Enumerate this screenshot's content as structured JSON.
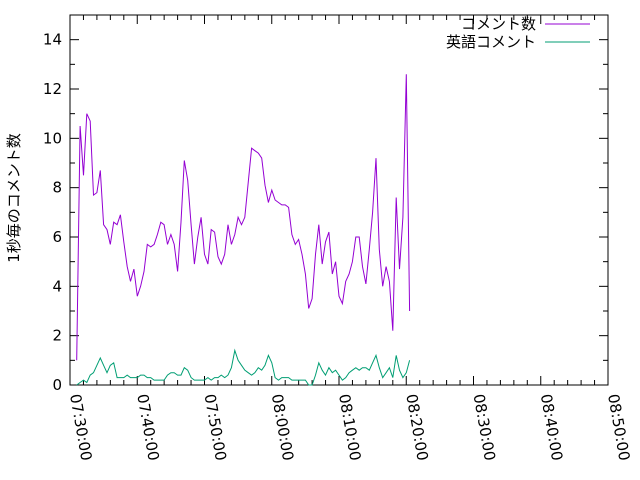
{
  "chart_data": {
    "type": "line",
    "title": "",
    "xlabel": "",
    "ylabel": "1秒毎のコメント数",
    "xlim": [
      "07:30:00",
      "08:50:00"
    ],
    "ylim": [
      0,
      15
    ],
    "x_ticks": [
      "07:30:00",
      "07:40:00",
      "07:50:00",
      "08:00:00",
      "08:10:00",
      "08:20:00",
      "08:30:00",
      "08:40:00",
      "08:50:00"
    ],
    "y_ticks": [
      "0",
      "2",
      "4",
      "6",
      "8",
      "10",
      "12",
      "14"
    ],
    "legend_position": "top-right",
    "grid": false,
    "series": [
      {
        "name": "コメント数",
        "color": "#9400d3",
        "points": [
          [
            "07:31:00",
            1.0
          ],
          [
            "07:31:30",
            10.5
          ],
          [
            "07:32:00",
            8.5
          ],
          [
            "07:32:30",
            11.0
          ],
          [
            "07:33:00",
            10.7
          ],
          [
            "07:33:30",
            7.7
          ],
          [
            "07:34:00",
            7.8
          ],
          [
            "07:34:30",
            8.7
          ],
          [
            "07:35:00",
            6.5
          ],
          [
            "07:35:30",
            6.3
          ],
          [
            "07:36:00",
            5.7
          ],
          [
            "07:36:30",
            6.6
          ],
          [
            "07:37:00",
            6.5
          ],
          [
            "07:37:30",
            6.9
          ],
          [
            "07:38:00",
            5.8
          ],
          [
            "07:38:30",
            4.8
          ],
          [
            "07:39:00",
            4.2
          ],
          [
            "07:39:30",
            4.7
          ],
          [
            "07:40:00",
            3.6
          ],
          [
            "07:40:30",
            4.0
          ],
          [
            "07:41:00",
            4.6
          ],
          [
            "07:41:30",
            5.7
          ],
          [
            "07:42:00",
            5.6
          ],
          [
            "07:42:30",
            5.7
          ],
          [
            "07:43:00",
            6.1
          ],
          [
            "07:43:30",
            6.6
          ],
          [
            "07:44:00",
            6.5
          ],
          [
            "07:44:30",
            5.7
          ],
          [
            "07:45:00",
            6.1
          ],
          [
            "07:45:30",
            5.7
          ],
          [
            "07:46:00",
            4.6
          ],
          [
            "07:46:30",
            6.6
          ],
          [
            "07:47:00",
            9.1
          ],
          [
            "07:47:30",
            8.3
          ],
          [
            "07:48:00",
            6.5
          ],
          [
            "07:48:30",
            4.9
          ],
          [
            "07:49:00",
            6.0
          ],
          [
            "07:49:30",
            6.8
          ],
          [
            "07:50:00",
            5.3
          ],
          [
            "07:50:30",
            4.9
          ],
          [
            "07:51:00",
            6.3
          ],
          [
            "07:51:30",
            6.2
          ],
          [
            "07:52:00",
            5.2
          ],
          [
            "07:52:30",
            4.9
          ],
          [
            "07:53:00",
            5.3
          ],
          [
            "07:53:30",
            6.5
          ],
          [
            "07:54:00",
            5.7
          ],
          [
            "07:54:30",
            6.1
          ],
          [
            "07:55:00",
            6.8
          ],
          [
            "07:55:30",
            6.5
          ],
          [
            "07:56:00",
            6.8
          ],
          [
            "07:56:30",
            8.2
          ],
          [
            "07:57:00",
            9.6
          ],
          [
            "07:57:30",
            9.5
          ],
          [
            "07:58:00",
            9.4
          ],
          [
            "07:58:30",
            9.2
          ],
          [
            "07:59:00",
            8.1
          ],
          [
            "07:59:30",
            7.4
          ],
          [
            "08:00:00",
            7.9
          ],
          [
            "08:00:30",
            7.5
          ],
          [
            "08:01:00",
            7.4
          ],
          [
            "08:01:30",
            7.3
          ],
          [
            "08:02:00",
            7.3
          ],
          [
            "08:02:30",
            7.2
          ],
          [
            "08:03:00",
            6.1
          ],
          [
            "08:03:30",
            5.7
          ],
          [
            "08:04:00",
            5.9
          ],
          [
            "08:04:30",
            5.3
          ],
          [
            "08:05:00",
            4.5
          ],
          [
            "08:05:30",
            3.1
          ],
          [
            "08:06:00",
            3.5
          ],
          [
            "08:06:30",
            5.3
          ],
          [
            "08:07:00",
            6.5
          ],
          [
            "08:07:30",
            4.9
          ],
          [
            "08:08:00",
            5.8
          ],
          [
            "08:08:30",
            6.2
          ],
          [
            "08:09:00",
            4.5
          ],
          [
            "08:09:30",
            5.0
          ],
          [
            "08:10:00",
            3.6
          ],
          [
            "08:10:30",
            3.3
          ],
          [
            "08:11:00",
            4.2
          ],
          [
            "08:11:30",
            4.5
          ],
          [
            "08:12:00",
            5.0
          ],
          [
            "08:12:30",
            6.0
          ],
          [
            "08:13:00",
            6.0
          ],
          [
            "08:13:30",
            4.8
          ],
          [
            "08:14:00",
            4.1
          ],
          [
            "08:14:30",
            5.5
          ],
          [
            "08:15:00",
            7.0
          ],
          [
            "08:15:30",
            9.2
          ],
          [
            "08:16:00",
            5.5
          ],
          [
            "08:16:30",
            4.0
          ],
          [
            "08:17:00",
            4.8
          ],
          [
            "08:17:30",
            4.2
          ],
          [
            "08:18:00",
            2.2
          ],
          [
            "08:18:30",
            7.6
          ],
          [
            "08:19:00",
            4.7
          ],
          [
            "08:19:30",
            6.8
          ],
          [
            "08:20:00",
            12.6
          ],
          [
            "08:20:30",
            3.0
          ]
        ]
      },
      {
        "name": "英語コメント",
        "color": "#009e73",
        "points": [
          [
            "07:31:00",
            0.0
          ],
          [
            "07:31:30",
            0.1
          ],
          [
            "07:32:00",
            0.2
          ],
          [
            "07:32:30",
            0.1
          ],
          [
            "07:33:00",
            0.4
          ],
          [
            "07:33:30",
            0.5
          ],
          [
            "07:34:00",
            0.8
          ],
          [
            "07:34:30",
            1.1
          ],
          [
            "07:35:00",
            0.8
          ],
          [
            "07:35:30",
            0.5
          ],
          [
            "07:36:00",
            0.8
          ],
          [
            "07:36:30",
            0.9
          ],
          [
            "07:37:00",
            0.3
          ],
          [
            "07:37:30",
            0.3
          ],
          [
            "07:38:00",
            0.3
          ],
          [
            "07:38:30",
            0.4
          ],
          [
            "07:39:00",
            0.3
          ],
          [
            "07:39:30",
            0.3
          ],
          [
            "07:40:00",
            0.3
          ],
          [
            "07:40:30",
            0.4
          ],
          [
            "07:41:00",
            0.4
          ],
          [
            "07:41:30",
            0.3
          ],
          [
            "07:42:00",
            0.3
          ],
          [
            "07:42:30",
            0.2
          ],
          [
            "07:43:00",
            0.2
          ],
          [
            "07:43:30",
            0.2
          ],
          [
            "07:44:00",
            0.2
          ],
          [
            "07:44:30",
            0.4
          ],
          [
            "07:45:00",
            0.5
          ],
          [
            "07:45:30",
            0.5
          ],
          [
            "07:46:00",
            0.4
          ],
          [
            "07:46:30",
            0.4
          ],
          [
            "07:47:00",
            0.7
          ],
          [
            "07:47:30",
            0.6
          ],
          [
            "07:48:00",
            0.3
          ],
          [
            "07:48:30",
            0.2
          ],
          [
            "07:49:00",
            0.2
          ],
          [
            "07:49:30",
            0.2
          ],
          [
            "07:50:00",
            0.2
          ],
          [
            "07:50:30",
            0.3
          ],
          [
            "07:51:00",
            0.2
          ],
          [
            "07:51:30",
            0.3
          ],
          [
            "07:52:00",
            0.3
          ],
          [
            "07:52:30",
            0.4
          ],
          [
            "07:53:00",
            0.3
          ],
          [
            "07:53:30",
            0.4
          ],
          [
            "07:54:00",
            0.7
          ],
          [
            "07:54:30",
            1.4
          ],
          [
            "07:55:00",
            1.0
          ],
          [
            "07:55:30",
            0.8
          ],
          [
            "07:56:00",
            0.6
          ],
          [
            "07:56:30",
            0.5
          ],
          [
            "07:57:00",
            0.4
          ],
          [
            "07:57:30",
            0.5
          ],
          [
            "07:58:00",
            0.7
          ],
          [
            "07:58:30",
            0.6
          ],
          [
            "07:59:00",
            0.8
          ],
          [
            "07:59:30",
            1.2
          ],
          [
            "08:00:00",
            0.9
          ],
          [
            "08:00:30",
            0.3
          ],
          [
            "08:01:00",
            0.2
          ],
          [
            "08:01:30",
            0.3
          ],
          [
            "08:02:00",
            0.3
          ],
          [
            "08:02:30",
            0.3
          ],
          [
            "08:03:00",
            0.2
          ],
          [
            "08:03:30",
            0.2
          ],
          [
            "08:04:00",
            0.2
          ],
          [
            "08:04:30",
            0.2
          ],
          [
            "08:05:00",
            0.2
          ],
          [
            "08:05:30",
            0.0
          ],
          [
            "08:06:00",
            0.0
          ],
          [
            "08:06:30",
            0.4
          ],
          [
            "08:07:00",
            0.9
          ],
          [
            "08:07:30",
            0.6
          ],
          [
            "08:08:00",
            0.4
          ],
          [
            "08:08:30",
            0.7
          ],
          [
            "08:09:00",
            0.5
          ],
          [
            "08:09:30",
            0.6
          ],
          [
            "08:10:00",
            0.4
          ],
          [
            "08:10:30",
            0.2
          ],
          [
            "08:11:00",
            0.3
          ],
          [
            "08:11:30",
            0.5
          ],
          [
            "08:12:00",
            0.6
          ],
          [
            "08:12:30",
            0.7
          ],
          [
            "08:13:00",
            0.6
          ],
          [
            "08:13:30",
            0.7
          ],
          [
            "08:14:00",
            0.7
          ],
          [
            "08:14:30",
            0.6
          ],
          [
            "08:15:00",
            0.9
          ],
          [
            "08:15:30",
            1.2
          ],
          [
            "08:16:00",
            0.7
          ],
          [
            "08:16:30",
            0.3
          ],
          [
            "08:17:00",
            0.5
          ],
          [
            "08:17:30",
            0.7
          ],
          [
            "08:18:00",
            0.3
          ],
          [
            "08:18:30",
            1.2
          ],
          [
            "08:19:00",
            0.6
          ],
          [
            "08:19:30",
            0.3
          ],
          [
            "08:20:00",
            0.5
          ],
          [
            "08:20:30",
            1.0
          ]
        ]
      }
    ]
  }
}
